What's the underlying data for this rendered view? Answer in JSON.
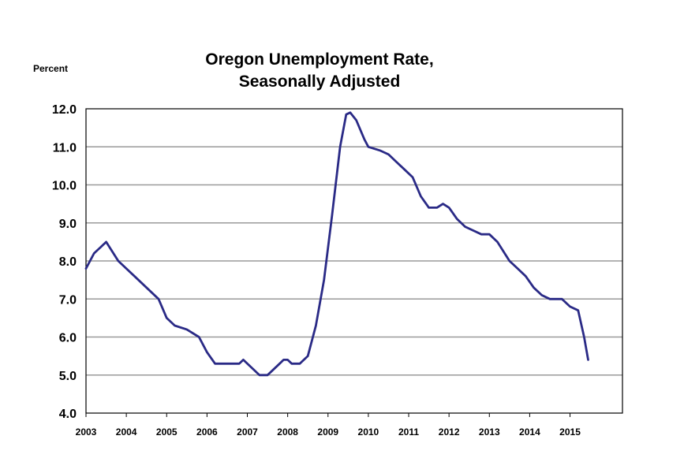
{
  "chart_data": {
    "type": "line",
    "title_line1": "Oregon Unemployment Rate,",
    "title_line2": "Seasonally Adjusted",
    "ylabel": "Percent",
    "xlabel": "",
    "ylim": [
      4.0,
      12.0
    ],
    "y_ticks": [
      "12.0",
      "11.0",
      "10.0",
      "9.0",
      "8.0",
      "7.0",
      "6.0",
      "5.0",
      "4.0"
    ],
    "x_ticks": [
      "2003",
      "2004",
      "2005",
      "2006",
      "2007",
      "2008",
      "2009",
      "2010",
      "2011",
      "2012",
      "2013",
      "2014",
      "2015"
    ],
    "xlim": [
      2003.0,
      2016.3
    ],
    "grid": true,
    "series": [
      {
        "name": "Oregon Unemployment Rate",
        "color": "#2a2a86",
        "points": [
          [
            2003.0,
            7.8
          ],
          [
            2003.2,
            8.2
          ],
          [
            2003.5,
            8.5
          ],
          [
            2003.8,
            8.0
          ],
          [
            2004.0,
            7.8
          ],
          [
            2004.2,
            7.6
          ],
          [
            2004.5,
            7.3
          ],
          [
            2004.8,
            7.0
          ],
          [
            2005.0,
            6.5
          ],
          [
            2005.2,
            6.3
          ],
          [
            2005.5,
            6.2
          ],
          [
            2005.8,
            6.0
          ],
          [
            2006.0,
            5.6
          ],
          [
            2006.2,
            5.3
          ],
          [
            2006.5,
            5.3
          ],
          [
            2006.8,
            5.3
          ],
          [
            2006.9,
            5.4
          ],
          [
            2007.0,
            5.3
          ],
          [
            2007.2,
            5.1
          ],
          [
            2007.3,
            5.0
          ],
          [
            2007.5,
            5.0
          ],
          [
            2007.8,
            5.3
          ],
          [
            2007.9,
            5.4
          ],
          [
            2008.0,
            5.4
          ],
          [
            2008.1,
            5.3
          ],
          [
            2008.3,
            5.3
          ],
          [
            2008.5,
            5.5
          ],
          [
            2008.7,
            6.3
          ],
          [
            2008.9,
            7.5
          ],
          [
            2009.1,
            9.2
          ],
          [
            2009.3,
            11.0
          ],
          [
            2009.45,
            11.85
          ],
          [
            2009.55,
            11.9
          ],
          [
            2009.7,
            11.7
          ],
          [
            2009.9,
            11.2
          ],
          [
            2010.0,
            11.0
          ],
          [
            2010.3,
            10.9
          ],
          [
            2010.5,
            10.8
          ],
          [
            2010.7,
            10.6
          ],
          [
            2010.9,
            10.4
          ],
          [
            2011.1,
            10.2
          ],
          [
            2011.3,
            9.7
          ],
          [
            2011.5,
            9.4
          ],
          [
            2011.7,
            9.4
          ],
          [
            2011.85,
            9.5
          ],
          [
            2012.0,
            9.4
          ],
          [
            2012.2,
            9.1
          ],
          [
            2012.4,
            8.9
          ],
          [
            2012.6,
            8.8
          ],
          [
            2012.8,
            8.7
          ],
          [
            2013.0,
            8.7
          ],
          [
            2013.2,
            8.5
          ],
          [
            2013.5,
            8.0
          ],
          [
            2013.7,
            7.8
          ],
          [
            2013.9,
            7.6
          ],
          [
            2014.1,
            7.3
          ],
          [
            2014.3,
            7.1
          ],
          [
            2014.5,
            7.0
          ],
          [
            2014.8,
            7.0
          ],
          [
            2015.0,
            6.8
          ],
          [
            2015.2,
            6.7
          ],
          [
            2015.35,
            6.0
          ],
          [
            2015.45,
            5.4
          ]
        ]
      }
    ]
  }
}
